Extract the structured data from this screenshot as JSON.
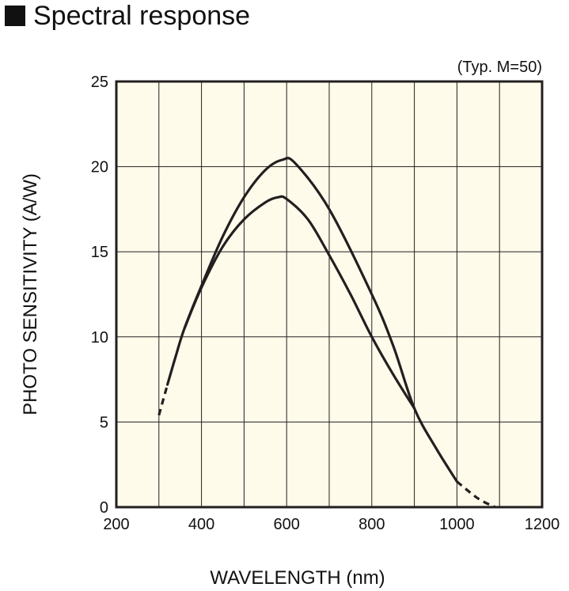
{
  "title": "Spectral response",
  "chart_data": {
    "type": "line",
    "title": "Spectral response",
    "note": "(Typ. M=50)",
    "xlabel": "WAVELENGTH (nm)",
    "ylabel": "PHOTO SENSITIVITY (A/W)",
    "xlim": [
      200,
      1200
    ],
    "ylim": [
      0,
      25
    ],
    "xticks": [
      200,
      400,
      600,
      800,
      1000,
      1200
    ],
    "yticks": [
      0,
      5,
      10,
      15,
      20,
      25
    ],
    "grid": true,
    "colors": {
      "background": "#fffbea",
      "line": "#231f20",
      "grid": "#231f20"
    },
    "series": [
      {
        "points": [
          [
            300,
            5.4
          ],
          [
            320,
            7.2
          ],
          [
            340,
            8.9
          ],
          [
            360,
            10.5
          ],
          [
            400,
            13.0
          ],
          [
            450,
            15.9
          ],
          [
            500,
            18.2
          ],
          [
            550,
            19.8
          ],
          [
            590,
            20.4
          ],
          [
            620,
            20.2
          ],
          [
            700,
            17.5
          ],
          [
            800,
            12.5
          ],
          [
            850,
            9.5
          ],
          [
            900,
            5.8
          ],
          [
            950,
            3.5
          ],
          [
            1000,
            1.5
          ],
          [
            1050,
            0.5
          ],
          [
            1090,
            0.0
          ]
        ],
        "dashed_below": 320,
        "dashed_above": 1000
      },
      {
        "points": [
          [
            360,
            10.5
          ],
          [
            400,
            12.9
          ],
          [
            450,
            15.3
          ],
          [
            500,
            16.9
          ],
          [
            550,
            17.9
          ],
          [
            580,
            18.2
          ],
          [
            600,
            18.1
          ],
          [
            650,
            16.9
          ],
          [
            700,
            14.8
          ],
          [
            750,
            12.5
          ],
          [
            800,
            10.0
          ],
          [
            850,
            7.8
          ],
          [
            900,
            5.8
          ]
        ]
      }
    ]
  }
}
